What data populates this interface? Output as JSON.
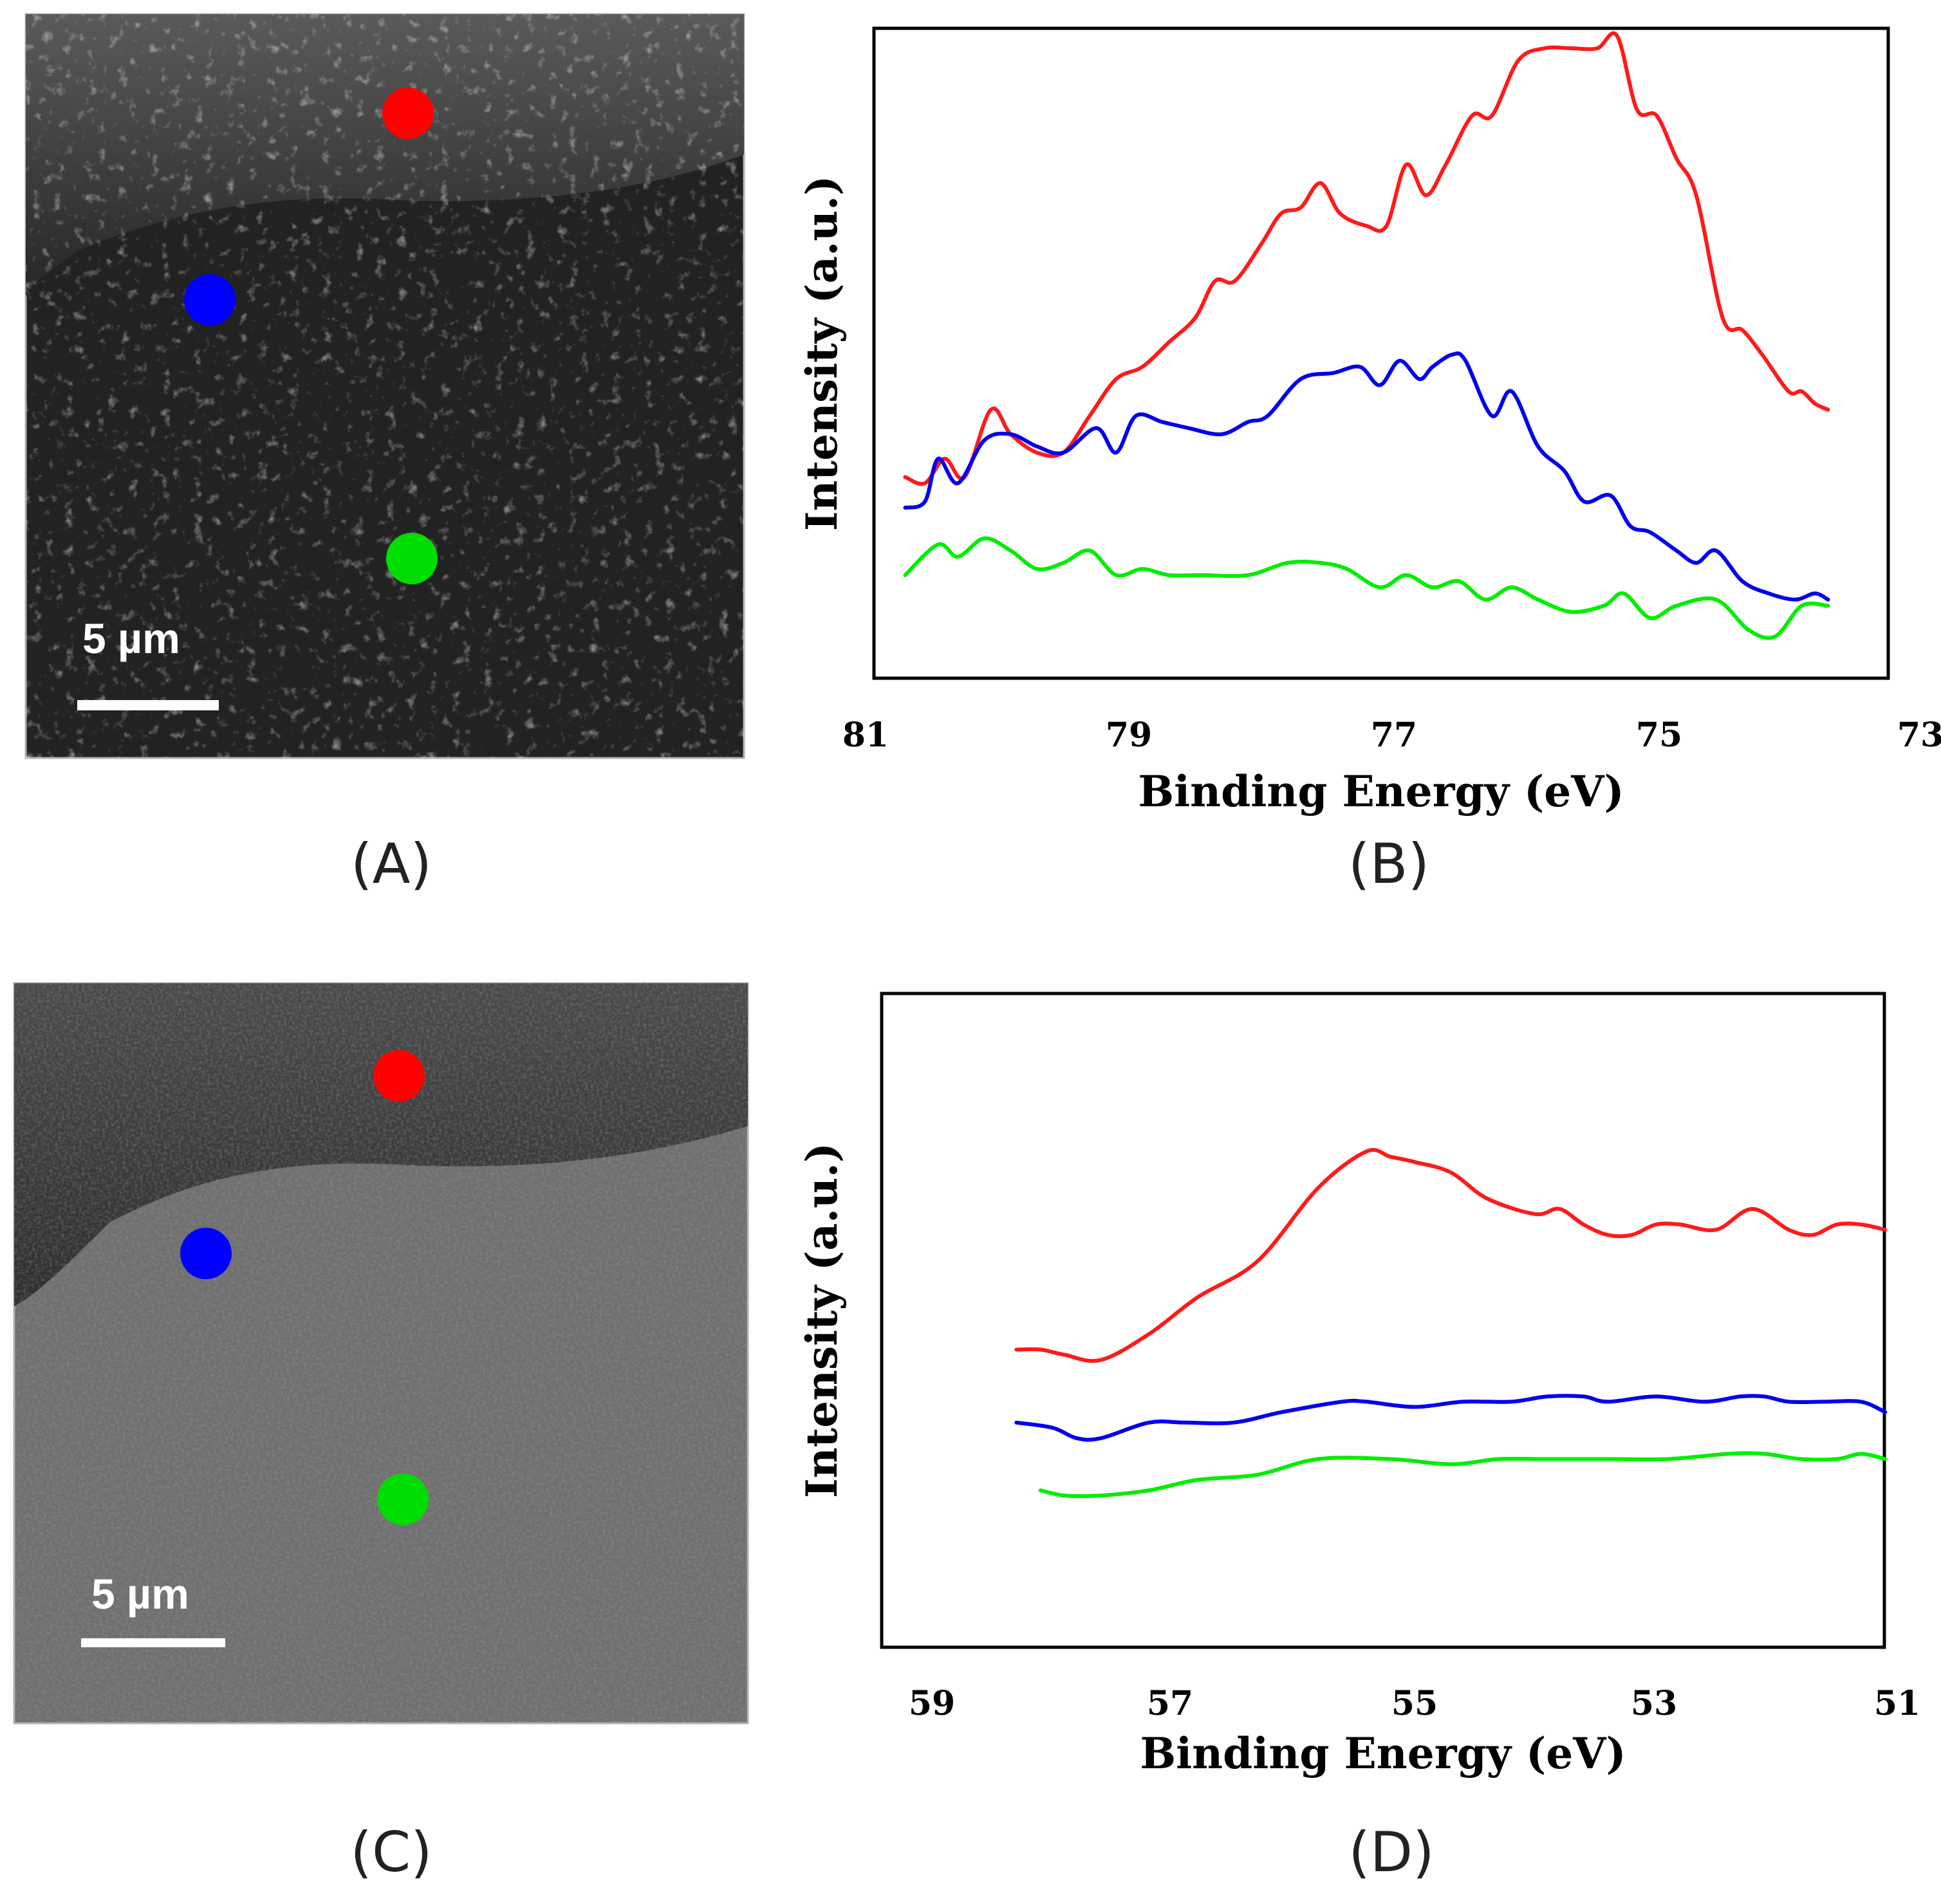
{
  "panels": {
    "a": {
      "label": "(A)",
      "scale_bar": "5 µm"
    },
    "b": {
      "label": "(B)"
    },
    "c": {
      "label": "(C)",
      "scale_bar": "5 µm"
    },
    "d": {
      "label": "(D)"
    }
  },
  "marker_colors": {
    "red": "#ff0000",
    "blue": "#0000ff",
    "green": "#00dd00"
  },
  "chart_data": [
    {
      "id": "B",
      "type": "line",
      "title": "",
      "xlabel": "Binding Energy (eV)",
      "ylabel": "Intensity (a.u.)",
      "xlim": [
        81,
        73
      ],
      "ylim": [
        0,
        100
      ],
      "xticks": [
        "81",
        "79",
        "77",
        "75",
        "73"
      ],
      "series": [
        {
          "name": "red",
          "color": "#ff1a1a",
          "x": [
            80.7,
            80.55,
            80.4,
            80.25,
            80.05,
            79.9,
            79.7,
            79.5,
            79.3,
            79.1,
            78.9,
            78.7,
            78.5,
            78.35,
            78.2,
            78.0,
            77.85,
            77.7,
            77.55,
            77.4,
            77.2,
            77.05,
            76.9,
            76.75,
            76.6,
            76.4,
            76.25,
            76.05,
            75.85,
            75.65,
            75.45,
            75.3,
            75.15,
            75.0,
            74.85,
            74.7,
            74.5,
            74.35,
            74.2,
            74.0,
            73.9,
            73.8,
            73.7
          ],
          "values": [
            28,
            27,
            31,
            28,
            39,
            35,
            32,
            32,
            38,
            44,
            46,
            50,
            54,
            60,
            60,
            66,
            71,
            72,
            76,
            71,
            69,
            69,
            79,
            74,
            79,
            87,
            87,
            96,
            98,
            98,
            98,
            100,
            88,
            87,
            80,
            74,
            54,
            52,
            48,
            42,
            42,
            40,
            39
          ]
        },
        {
          "name": "blue",
          "color": "#0000ee",
          "x": [
            80.7,
            80.55,
            80.45,
            80.3,
            80.1,
            79.9,
            79.7,
            79.5,
            79.25,
            79.1,
            78.95,
            78.75,
            78.55,
            78.3,
            78.1,
            77.95,
            77.7,
            77.45,
            77.25,
            77.1,
            76.95,
            76.8,
            76.7,
            76.55,
            76.45,
            76.25,
            76.1,
            75.9,
            75.7,
            75.55,
            75.35,
            75.2,
            75.05,
            74.85,
            74.7,
            74.55,
            74.35,
            74.15,
            73.95,
            73.8,
            73.7
          ],
          "values": [
            23,
            24,
            31,
            27,
            34,
            35,
            33,
            32,
            36,
            32,
            38,
            37,
            36,
            35,
            37,
            38,
            44,
            45,
            46,
            43,
            47,
            44,
            46,
            48,
            47,
            38,
            42,
            33,
            29,
            24,
            25,
            20,
            19,
            16,
            14,
            16,
            11,
            9,
            8,
            9,
            8
          ]
        },
        {
          "name": "green",
          "color": "#00ee00",
          "x": [
            80.7,
            80.45,
            80.3,
            80.1,
            79.9,
            79.7,
            79.5,
            79.3,
            79.1,
            78.9,
            78.7,
            78.45,
            78.1,
            77.8,
            77.55,
            77.35,
            77.1,
            76.9,
            76.7,
            76.5,
            76.3,
            76.1,
            75.9,
            75.65,
            75.4,
            75.25,
            75.05,
            74.85,
            74.55,
            74.3,
            74.1,
            73.9,
            73.7
          ],
          "values": [
            12,
            17,
            15,
            18,
            16,
            13,
            14,
            16,
            12,
            13,
            12,
            12,
            12,
            14,
            14,
            13,
            10,
            12,
            10,
            11,
            8,
            10,
            8,
            6,
            7,
            9,
            5,
            7,
            8,
            3,
            2,
            7,
            7
          ]
        }
      ]
    },
    {
      "id": "D",
      "type": "line",
      "title": "",
      "xlabel": "Binding Energy (eV)",
      "ylabel": "Intensity (a.u.)",
      "xlim": [
        59,
        51
      ],
      "ylim": [
        0,
        100
      ],
      "xticks": [
        "59",
        "57",
        "55",
        "53",
        "51"
      ],
      "series": [
        {
          "name": "red",
          "color": "#ff1a1a",
          "x": [
            58.3,
            58.1,
            57.9,
            57.6,
            57.2,
            56.8,
            56.3,
            55.8,
            55.4,
            55.2,
            55.0,
            54.7,
            54.4,
            54.0,
            53.8,
            53.6,
            53.4,
            53.2,
            53.0,
            52.8,
            52.5,
            52.2,
            51.9,
            51.7,
            51.5,
            51.3,
            51.1
          ],
          "values": [
            46,
            46,
            45,
            44,
            49,
            56,
            63,
            77,
            84,
            83,
            82,
            80,
            75,
            72,
            73,
            70,
            68,
            68,
            70,
            70,
            69,
            73,
            69,
            68,
            70,
            70,
            69
          ]
        },
        {
          "name": "blue",
          "color": "#0000ee",
          "x": [
            58.3,
            58.0,
            57.8,
            57.6,
            57.2,
            56.9,
            56.5,
            56.1,
            55.6,
            55.4,
            55.0,
            54.6,
            54.2,
            53.9,
            53.6,
            53.4,
            53.0,
            52.6,
            52.3,
            52.1,
            51.9,
            51.6,
            51.3,
            51.1
          ],
          "values": [
            32,
            31,
            29,
            29,
            32,
            32,
            32,
            34,
            36,
            36,
            35,
            36,
            36,
            37,
            37,
            36,
            37,
            36,
            37,
            37,
            36,
            36,
            36,
            34
          ]
        },
        {
          "name": "green",
          "color": "#00ee00",
          "x": [
            58.1,
            57.9,
            57.6,
            57.2,
            56.8,
            56.3,
            55.8,
            55.2,
            54.7,
            54.3,
            53.9,
            53.4,
            52.9,
            52.4,
            52.1,
            51.8,
            51.5,
            51.3,
            51.1
          ],
          "values": [
            19,
            18,
            18,
            19,
            21,
            22,
            25,
            25,
            24,
            25,
            25,
            25,
            25,
            26,
            26,
            25,
            25,
            26,
            25
          ]
        }
      ]
    }
  ]
}
